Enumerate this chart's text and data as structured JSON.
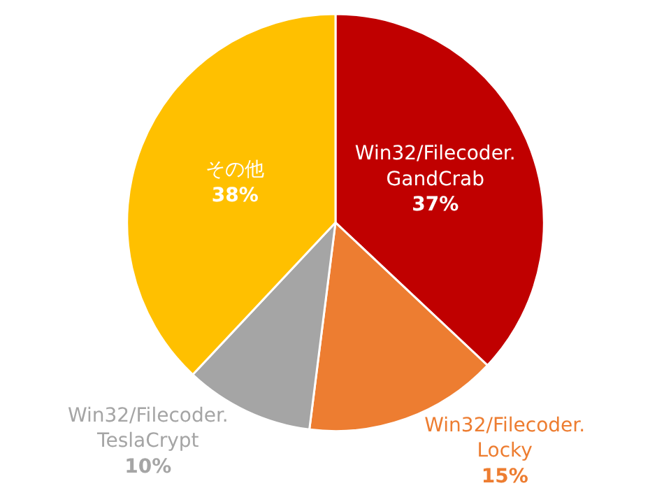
{
  "chart_data": {
    "type": "pie",
    "categories": [
      "Win32/Filecoder.\nGandCrab",
      "Win32/Filecoder.\nLocky",
      "Win32/Filecoder.\nTeslaCrypt",
      "その他"
    ],
    "values": [
      37,
      15,
      10,
      38
    ],
    "value_labels": [
      "37%",
      "15%",
      "10%",
      "38%"
    ],
    "colors": [
      "#c00000",
      "#ed7d31",
      "#a5a5a5",
      "#ffc000"
    ],
    "legend": false
  }
}
